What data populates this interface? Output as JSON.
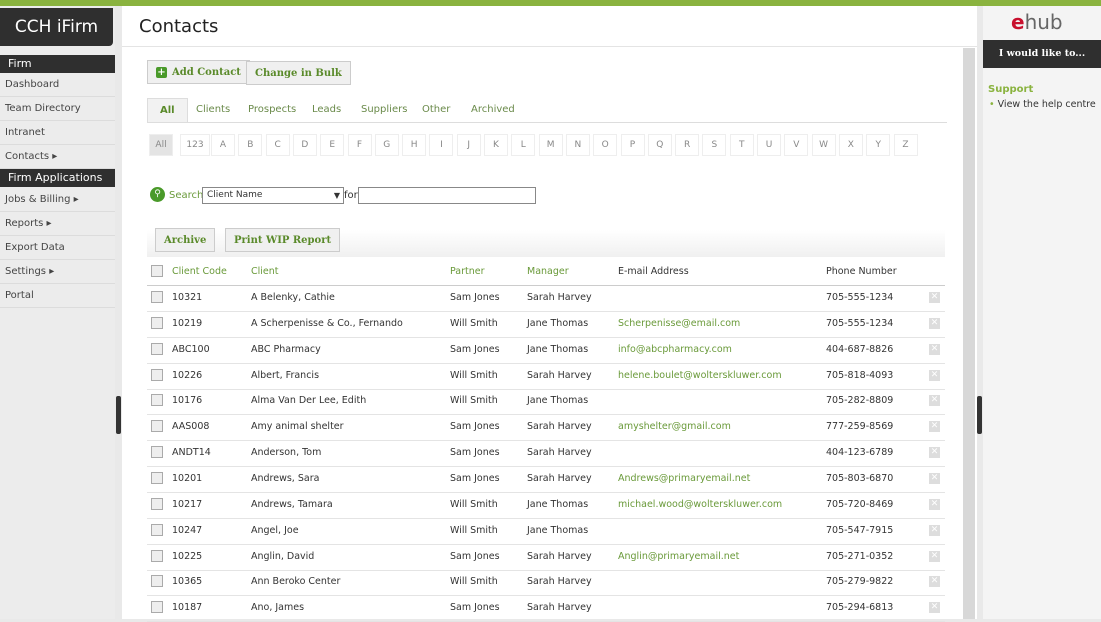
{
  "app": {
    "logo": "CCH iFirm"
  },
  "sidebar": {
    "firm_header": "Firm",
    "items": [
      "Dashboard",
      "Team Directory",
      "Intranet",
      "Contacts ▸"
    ],
    "apps_header": "Firm Applications",
    "app_items": [
      "Jobs & Billing ▸",
      "Reports ▸",
      "Export Data",
      "Settings ▸",
      "Portal"
    ]
  },
  "page": {
    "title": "Contacts"
  },
  "toolbar": {
    "add_contact": "Add Contact",
    "change_bulk": "Change in Bulk"
  },
  "tabs": [
    "All",
    "Clients",
    "Prospects",
    "Leads",
    "Suppliers",
    "Other",
    "Archived"
  ],
  "letters": [
    "All",
    "123",
    "A",
    "B",
    "C",
    "D",
    "E",
    "F",
    "G",
    "H",
    "I",
    "J",
    "K",
    "L",
    "M",
    "N",
    "O",
    "P",
    "Q",
    "R",
    "S",
    "T",
    "U",
    "V",
    "W",
    "X",
    "Y",
    "Z"
  ],
  "search": {
    "label": "Search",
    "field": "Client Name",
    "for_label": "for",
    "value": ""
  },
  "actions": {
    "archive": "Archive",
    "print_wip": "Print WIP Report"
  },
  "table": {
    "headers": [
      "Client Code",
      "Client",
      "Partner",
      "Manager",
      "E-mail Address",
      "Phone Number"
    ],
    "rows": [
      [
        "10321",
        "A Belenky, Cathie",
        "Sam Jones",
        "Sarah Harvey",
        "",
        "705-555-1234"
      ],
      [
        "10219",
        "A Scherpenisse & Co., Fernando",
        "Will Smith",
        "Jane Thomas",
        "Scherpenisse@email.com",
        "705-555-1234"
      ],
      [
        "ABC100",
        "ABC Pharmacy",
        "Sam Jones",
        "Jane Thomas",
        "info@abcpharmacy.com",
        "404-687-8826"
      ],
      [
        "10226",
        "Albert, Francis",
        "Will Smith",
        "Sarah Harvey",
        "helene.boulet@wolterskluwer.com",
        "705-818-4093"
      ],
      [
        "10176",
        "Alma Van Der Lee, Edith",
        "Will Smith",
        "Jane Thomas",
        "",
        "705-282-8809"
      ],
      [
        "AAS008",
        "Amy animal shelter",
        "Sam Jones",
        "Sarah Harvey",
        "amyshelter@gmail.com",
        "777-259-8569"
      ],
      [
        "ANDT14",
        "Anderson, Tom",
        "Sam Jones",
        "Sarah Harvey",
        "",
        "404-123-6789"
      ],
      [
        "10201",
        "Andrews, Sara",
        "Sam Jones",
        "Sarah Harvey",
        "Andrews@primaryemail.net",
        "705-803-6870"
      ],
      [
        "10217",
        "Andrews, Tamara",
        "Will Smith",
        "Jane Thomas",
        "michael.wood@wolterskluwer.com",
        "705-720-8469"
      ],
      [
        "10247",
        "Angel, Joe",
        "Will Smith",
        "Jane Thomas",
        "",
        "705-547-7915"
      ],
      [
        "10225",
        "Anglin, David",
        "Sam Jones",
        "Sarah Harvey",
        "Anglin@primaryemail.net",
        "705-271-0352"
      ],
      [
        "10365",
        "Ann Beroko Center",
        "Will Smith",
        "Sarah Harvey",
        "",
        "705-279-9822"
      ],
      [
        "10187",
        "Ano, James",
        "Sam Jones",
        "Sarah Harvey",
        "",
        "705-294-6813"
      ]
    ]
  },
  "right": {
    "logo_e": "e",
    "logo_hub": "hub",
    "like": "I would like to...",
    "support": "Support",
    "help": "View the help centre"
  },
  "colors": {
    "accent": "#8ab33f",
    "dark": "#2f2f2f",
    "link": "#6a9a3a"
  }
}
